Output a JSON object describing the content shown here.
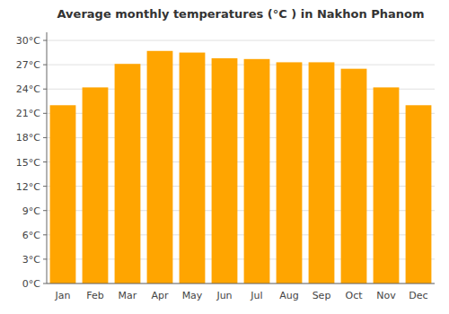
{
  "chart_data": {
    "type": "bar",
    "title": "Average monthly temperatures (°C ) in Nakhon Phanom",
    "categories": [
      "Jan",
      "Feb",
      "Mar",
      "Apr",
      "May",
      "Jun",
      "Jul",
      "Aug",
      "Sep",
      "Oct",
      "Nov",
      "Dec"
    ],
    "values": [
      22.0,
      24.2,
      27.1,
      28.7,
      28.5,
      27.8,
      27.7,
      27.3,
      27.3,
      26.5,
      24.2,
      22.0
    ],
    "color": "#FFA500",
    "ylim": [
      0,
      31
    ],
    "yticks": [
      {
        "value": 0,
        "label": "0°C"
      },
      {
        "value": 3,
        "label": "3°C"
      },
      {
        "value": 6,
        "label": "6°C"
      },
      {
        "value": 9,
        "label": "9°C"
      },
      {
        "value": 12,
        "label": "12°C"
      },
      {
        "value": 15,
        "label": "15°C"
      },
      {
        "value": 18,
        "label": "18°C"
      },
      {
        "value": 21,
        "label": "21°C"
      },
      {
        "value": 24,
        "label": "24°C"
      },
      {
        "value": 27,
        "label": "27°C"
      },
      {
        "value": 30,
        "label": "30°C"
      }
    ],
    "grid": true
  }
}
